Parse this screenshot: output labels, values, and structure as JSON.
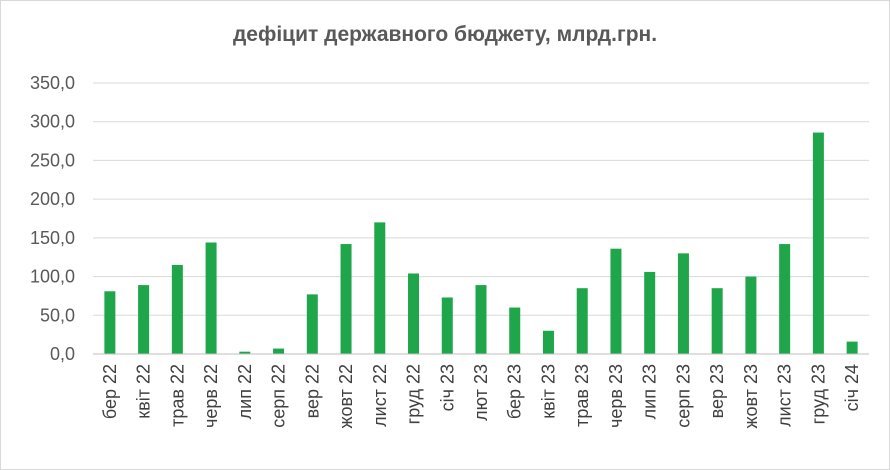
{
  "chart_data": {
    "type": "bar",
    "title": "дефіцит державного бюджету, млрд.грн.",
    "xlabel": "",
    "ylabel": "",
    "ylim": [
      0,
      350
    ],
    "yticks": [
      "0,0",
      "50,0",
      "100,0",
      "150,0",
      "200,0",
      "250,0",
      "300,0",
      "350,0"
    ],
    "grid": true,
    "categories": [
      "бер 22",
      "квіт 22",
      "трав 22",
      "черв 22",
      "лип 22",
      "серп 22",
      "вер 22",
      "жовт 22",
      "лист 22",
      "груд 22",
      "січ 23",
      "лют 23",
      "бер 23",
      "квіт 23",
      "трав 23",
      "черв 23",
      "лип 23",
      "серп 23",
      "вер 23",
      "жовт 23",
      "лист 23",
      "груд 23",
      "січ 24"
    ],
    "values": [
      81,
      89,
      115,
      144,
      3,
      7,
      77,
      142,
      170,
      104,
      73,
      89,
      60,
      30,
      85,
      136,
      106,
      130,
      85,
      100,
      142,
      286,
      16
    ],
    "colors": {
      "bar": "#1fa64a",
      "grid": "#d9d9d9",
      "axis": "#bfbfbf"
    }
  }
}
